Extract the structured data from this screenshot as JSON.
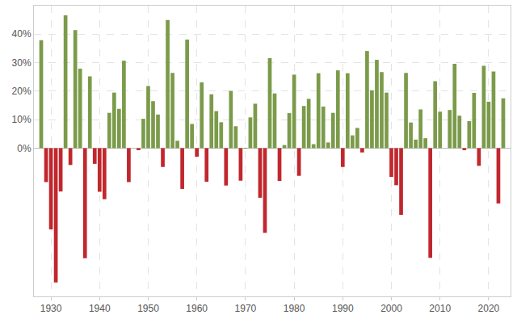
{
  "chart_data": {
    "type": "bar",
    "x": [
      1928,
      1929,
      1930,
      1931,
      1932,
      1933,
      1934,
      1935,
      1936,
      1937,
      1938,
      1939,
      1940,
      1941,
      1942,
      1943,
      1944,
      1945,
      1946,
      1947,
      1948,
      1949,
      1950,
      1951,
      1952,
      1953,
      1954,
      1955,
      1956,
      1957,
      1958,
      1959,
      1960,
      1961,
      1962,
      1963,
      1964,
      1965,
      1966,
      1967,
      1968,
      1969,
      1970,
      1971,
      1972,
      1973,
      1974,
      1975,
      1976,
      1977,
      1978,
      1979,
      1980,
      1981,
      1982,
      1983,
      1984,
      1985,
      1986,
      1987,
      1988,
      1989,
      1990,
      1991,
      1992,
      1993,
      1994,
      1995,
      1996,
      1997,
      1998,
      1999,
      2000,
      2001,
      2002,
      2003,
      2004,
      2005,
      2006,
      2007,
      2008,
      2009,
      2010,
      2011,
      2012,
      2013,
      2014,
      2015,
      2016,
      2017,
      2018,
      2019,
      2020,
      2021,
      2022,
      2023
    ],
    "values": [
      37.9,
      -11.9,
      -28.5,
      -47.1,
      -15.2,
      46.6,
      -5.9,
      41.4,
      27.9,
      -38.6,
      25.2,
      -5.5,
      -15.3,
      -17.9,
      12.4,
      19.5,
      13.8,
      30.7,
      -11.9,
      0.0,
      -0.7,
      10.3,
      21.8,
      16.5,
      11.8,
      -6.6,
      45.0,
      26.4,
      2.6,
      -14.3,
      38.1,
      8.5,
      -3.0,
      23.1,
      -11.8,
      18.9,
      13.0,
      9.1,
      -13.1,
      20.1,
      7.7,
      -11.4,
      0.1,
      10.8,
      15.6,
      -17.4,
      -29.7,
      31.6,
      19.2,
      -11.5,
      1.1,
      12.3,
      25.8,
      -9.7,
      14.8,
      17.3,
      1.4,
      26.3,
      14.6,
      2.0,
      12.4,
      27.3,
      -6.6,
      26.3,
      4.5,
      7.1,
      -1.5,
      34.1,
      20.3,
      31.0,
      26.7,
      19.5,
      -10.1,
      -13.0,
      -23.4,
      26.4,
      9.0,
      3.0,
      13.6,
      3.5,
      -38.5,
      23.5,
      12.8,
      0.0,
      13.4,
      29.6,
      11.4,
      -0.7,
      9.5,
      19.4,
      -6.2,
      28.9,
      16.3,
      26.9,
      -19.4,
      17.5
    ],
    "colors": [
      "#7b9b4a",
      "#c1272d",
      "#c1272d",
      "#c1272d",
      "#c1272d",
      "#7b9b4a",
      "#c1272d",
      "#7b9b4a",
      "#7b9b4a",
      "#c1272d",
      "#7b9b4a",
      "#c1272d",
      "#c1272d",
      "#c1272d",
      "#7b9b4a",
      "#7b9b4a",
      "#7b9b4a",
      "#7b9b4a",
      "#c1272d",
      "#7b9b4a",
      "#c1272d",
      "#7b9b4a",
      "#7b9b4a",
      "#7b9b4a",
      "#7b9b4a",
      "#c1272d",
      "#7b9b4a",
      "#7b9b4a",
      "#7b9b4a",
      "#c1272d",
      "#7b9b4a",
      "#7b9b4a",
      "#c1272d",
      "#7b9b4a",
      "#c1272d",
      "#7b9b4a",
      "#7b9b4a",
      "#7b9b4a",
      "#c1272d",
      "#7b9b4a",
      "#7b9b4a",
      "#c1272d",
      "#7b9b4a",
      "#7b9b4a",
      "#7b9b4a",
      "#c1272d",
      "#c1272d",
      "#7b9b4a",
      "#7b9b4a",
      "#c1272d",
      "#7b9b4a",
      "#7b9b4a",
      "#7b9b4a",
      "#c1272d",
      "#7b9b4a",
      "#7b9b4a",
      "#7b9b4a",
      "#7b9b4a",
      "#7b9b4a",
      "#7b9b4a",
      "#7b9b4a",
      "#7b9b4a",
      "#c1272d",
      "#7b9b4a",
      "#7b9b4a",
      "#7b9b4a",
      "#c1272d",
      "#7b9b4a",
      "#7b9b4a",
      "#7b9b4a",
      "#7b9b4a",
      "#7b9b4a",
      "#c1272d",
      "#c1272d",
      "#c1272d",
      "#7b9b4a",
      "#7b9b4a",
      "#7b9b4a",
      "#7b9b4a",
      "#7b9b4a",
      "#c1272d",
      "#7b9b4a",
      "#7b9b4a",
      "#7b9b4a",
      "#7b9b4a",
      "#7b9b4a",
      "#7b9b4a",
      "#c1272d",
      "#7b9b4a",
      "#7b9b4a",
      "#c1272d",
      "#7b9b4a",
      "#7b9b4a",
      "#7b9b4a",
      "#c1272d",
      "#7b9b4a"
    ],
    "xlim": [
      1926.5,
      2024.5
    ],
    "xticks": [
      1930,
      1940,
      1950,
      1960,
      1970,
      1980,
      1990,
      2000,
      2010,
      2020
    ],
    "ylim": [
      -52,
      50
    ],
    "yticks": [
      {
        "value": 0,
        "label": "0%"
      },
      {
        "value": 10,
        "label": "10%"
      },
      {
        "value": 20,
        "label": "20%"
      },
      {
        "value": 30,
        "label": "30%"
      },
      {
        "value": 40,
        "label": "40%"
      }
    ],
    "grid": true
  }
}
